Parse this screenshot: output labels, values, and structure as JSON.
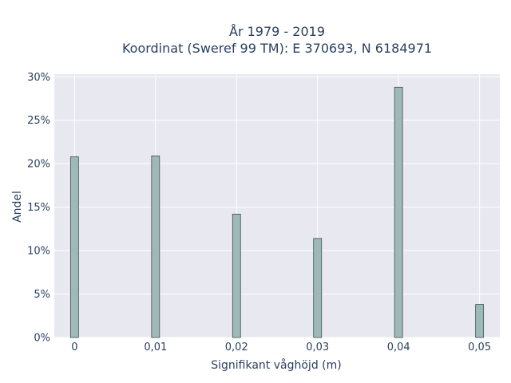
{
  "chart_data": {
    "type": "bar",
    "title_line1": "År 1979 - 2019",
    "title_line2": "Koordinat (Sweref 99 TM): E 370693, N 6184971",
    "xlabel": "Signifikant våghöjd (m)",
    "ylabel": "Andel",
    "x_values": [
      0,
      0.01,
      0.02,
      0.03,
      0.04,
      0.05
    ],
    "x_tick_labels": [
      "0",
      "0,01",
      "0,02",
      "0,03",
      "0,04",
      "0,05"
    ],
    "values": [
      20.8,
      20.9,
      14.2,
      11.4,
      28.8,
      3.8
    ],
    "y_ticks": [
      0,
      5,
      10,
      15,
      20,
      25,
      30
    ],
    "y_tick_labels": [
      "0%",
      "5%",
      "10%",
      "15%",
      "20%",
      "25%",
      "30%"
    ],
    "xlim": [
      -0.0025,
      0.0525
    ],
    "ylim": [
      0,
      30.3
    ],
    "grid": true,
    "colors": {
      "bar_fill": "#9fb8b8",
      "bar_stroke": "#3f4f4f",
      "plot_bg": "#e8e9f0",
      "grid": "#ffffff",
      "text": "#2a3f5f"
    }
  }
}
